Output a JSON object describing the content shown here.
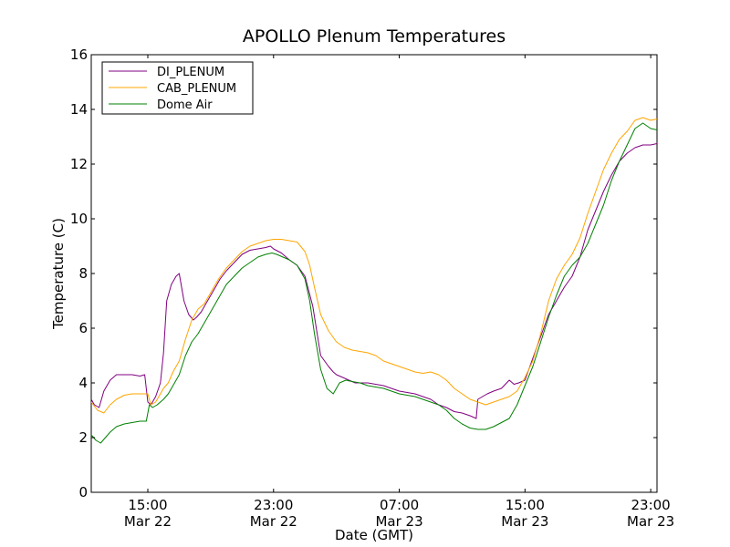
{
  "chart_data": {
    "type": "line",
    "title": "APOLLO Plenum Temperatures",
    "xlabel": "Date (GMT)",
    "ylabel": "Temperature (C)",
    "x_unit": "hours since Mar 22 00:00 GMT",
    "xlim": [
      11.4,
      47.4
    ],
    "ylim": [
      0,
      16
    ],
    "yticks": [
      0,
      2,
      4,
      6,
      8,
      10,
      12,
      14,
      16
    ],
    "xticks": [
      {
        "value": 15,
        "line1": "15:00",
        "line2": "Mar 22"
      },
      {
        "value": 23,
        "line1": "23:00",
        "line2": "Mar 22"
      },
      {
        "value": 31,
        "line1": "07:00",
        "line2": "Mar 23"
      },
      {
        "value": 39,
        "line1": "15:00",
        "line2": "Mar 23"
      },
      {
        "value": 47,
        "line1": "23:00",
        "line2": "Mar 23"
      }
    ],
    "legend_position": "top-left",
    "series": [
      {
        "name": "DI_PLENUM",
        "color": "#800080",
        "x": [
          11.4,
          11.6,
          11.9,
          12.2,
          12.6,
          13.0,
          13.5,
          14.0,
          14.5,
          14.8,
          15.0,
          15.2,
          15.5,
          15.8,
          16.0,
          16.2,
          16.5,
          16.8,
          17.0,
          17.3,
          17.6,
          17.9,
          18.1,
          18.4,
          18.7,
          19.0,
          19.3,
          19.6,
          20.0,
          20.5,
          21.0,
          21.5,
          22.0,
          22.5,
          22.8,
          23.0,
          23.5,
          24.0,
          24.5,
          25.0,
          25.5,
          26.0,
          26.5,
          26.8,
          27.0,
          27.4,
          27.8,
          28.2,
          28.6,
          29.0,
          29.5,
          30.0,
          30.5,
          31.0,
          31.5,
          32.0,
          32.5,
          33.0,
          33.5,
          34.0,
          34.5,
          35.0,
          35.5,
          35.9,
          36.0,
          36.3,
          36.6,
          37.0,
          37.5,
          38.0,
          38.3,
          38.6,
          39.0,
          39.5,
          40.0,
          40.5,
          41.0,
          41.5,
          42.0,
          42.5,
          43.0,
          43.5,
          44.0,
          44.5,
          45.0,
          45.5,
          46.0,
          46.5,
          47.0,
          47.4
        ],
        "y": [
          3.4,
          3.2,
          3.1,
          3.7,
          4.1,
          4.3,
          4.3,
          4.3,
          4.25,
          4.3,
          3.3,
          3.2,
          3.5,
          4.0,
          5.1,
          7.0,
          7.6,
          7.9,
          8.0,
          7.0,
          6.5,
          6.3,
          6.4,
          6.6,
          6.9,
          7.2,
          7.5,
          7.8,
          8.1,
          8.4,
          8.7,
          8.85,
          8.9,
          8.95,
          9.0,
          8.9,
          8.75,
          8.5,
          8.3,
          7.9,
          6.8,
          5.0,
          4.6,
          4.4,
          4.3,
          4.2,
          4.1,
          4.0,
          4.0,
          4.0,
          3.95,
          3.9,
          3.8,
          3.7,
          3.65,
          3.6,
          3.5,
          3.4,
          3.2,
          3.1,
          2.95,
          2.9,
          2.8,
          2.7,
          3.4,
          3.5,
          3.6,
          3.7,
          3.8,
          4.1,
          3.95,
          4.0,
          4.1,
          4.9,
          5.7,
          6.5,
          7.0,
          7.5,
          7.9,
          8.6,
          9.6,
          10.3,
          11.0,
          11.6,
          12.1,
          12.4,
          12.6,
          12.7,
          12.7,
          12.75
        ]
      },
      {
        "name": "CAB_PLENUM",
        "color": "#ffa500",
        "x": [
          11.4,
          11.8,
          12.2,
          12.6,
          13.0,
          13.5,
          14.0,
          14.5,
          15.0,
          15.2,
          15.5,
          15.8,
          16.0,
          16.3,
          16.6,
          17.0,
          17.4,
          17.8,
          18.2,
          18.6,
          19.0,
          19.5,
          20.0,
          20.5,
          21.0,
          21.5,
          22.0,
          22.5,
          23.0,
          23.5,
          24.0,
          24.5,
          25.0,
          25.3,
          25.6,
          26.0,
          26.5,
          27.0,
          27.5,
          28.0,
          28.5,
          29.0,
          29.5,
          30.0,
          30.5,
          31.0,
          31.5,
          32.0,
          32.5,
          33.0,
          33.5,
          34.0,
          34.5,
          35.0,
          35.5,
          36.0,
          36.5,
          37.0,
          37.5,
          38.0,
          38.5,
          39.0,
          39.5,
          40.0,
          40.5,
          41.0,
          41.5,
          42.0,
          42.5,
          43.0,
          43.5,
          44.0,
          44.5,
          45.0,
          45.5,
          46.0,
          46.5,
          47.0,
          47.4
        ],
        "y": [
          3.3,
          3.0,
          2.9,
          3.2,
          3.4,
          3.55,
          3.6,
          3.6,
          3.6,
          3.2,
          3.3,
          3.6,
          3.8,
          4.0,
          4.4,
          4.8,
          5.6,
          6.3,
          6.7,
          6.9,
          7.3,
          7.8,
          8.2,
          8.5,
          8.8,
          9.0,
          9.1,
          9.2,
          9.25,
          9.25,
          9.2,
          9.15,
          8.8,
          8.3,
          7.5,
          6.5,
          5.9,
          5.5,
          5.3,
          5.2,
          5.15,
          5.1,
          5.0,
          4.8,
          4.7,
          4.6,
          4.5,
          4.4,
          4.35,
          4.4,
          4.3,
          4.1,
          3.8,
          3.6,
          3.4,
          3.3,
          3.2,
          3.3,
          3.4,
          3.5,
          3.7,
          4.2,
          4.8,
          5.8,
          7.0,
          7.8,
          8.3,
          8.7,
          9.3,
          10.2,
          11.0,
          11.8,
          12.4,
          12.9,
          13.2,
          13.6,
          13.7,
          13.6,
          13.65
        ]
      },
      {
        "name": "Dome Air",
        "color": "#008000",
        "x": [
          11.4,
          11.7,
          12.0,
          12.3,
          12.6,
          13.0,
          13.5,
          14.0,
          14.5,
          14.9,
          15.1,
          15.3,
          15.6,
          16.0,
          16.3,
          16.6,
          17.0,
          17.4,
          17.8,
          18.2,
          18.6,
          19.0,
          19.5,
          20.0,
          20.5,
          21.0,
          21.5,
          22.0,
          22.5,
          22.9,
          23.2,
          23.6,
          24.0,
          24.5,
          25.0,
          25.3,
          25.6,
          26.0,
          26.4,
          26.8,
          27.2,
          27.6,
          28.0,
          28.5,
          29.0,
          29.5,
          30.0,
          30.5,
          31.0,
          31.5,
          32.0,
          32.5,
          33.0,
          33.5,
          34.0,
          34.5,
          35.0,
          35.5,
          36.0,
          36.5,
          37.0,
          37.5,
          38.0,
          38.5,
          39.0,
          39.5,
          40.0,
          40.5,
          41.0,
          41.5,
          42.0,
          42.5,
          43.0,
          43.5,
          44.0,
          44.5,
          45.0,
          45.5,
          46.0,
          46.5,
          47.0,
          47.4
        ],
        "y": [
          2.1,
          1.9,
          1.8,
          2.0,
          2.2,
          2.4,
          2.5,
          2.55,
          2.6,
          2.6,
          3.2,
          3.1,
          3.2,
          3.4,
          3.6,
          3.9,
          4.3,
          5.0,
          5.5,
          5.8,
          6.2,
          6.6,
          7.1,
          7.6,
          7.9,
          8.2,
          8.4,
          8.6,
          8.7,
          8.75,
          8.7,
          8.6,
          8.5,
          8.3,
          7.8,
          7.0,
          5.8,
          4.5,
          3.8,
          3.6,
          4.0,
          4.1,
          4.05,
          4.0,
          3.9,
          3.85,
          3.8,
          3.7,
          3.6,
          3.55,
          3.5,
          3.4,
          3.3,
          3.2,
          3.0,
          2.7,
          2.5,
          2.35,
          2.3,
          2.3,
          2.4,
          2.55,
          2.7,
          3.2,
          3.9,
          4.6,
          5.5,
          6.4,
          7.2,
          7.9,
          8.3,
          8.6,
          9.1,
          9.8,
          10.5,
          11.4,
          12.1,
          12.7,
          13.3,
          13.5,
          13.3,
          13.25
        ]
      }
    ]
  }
}
